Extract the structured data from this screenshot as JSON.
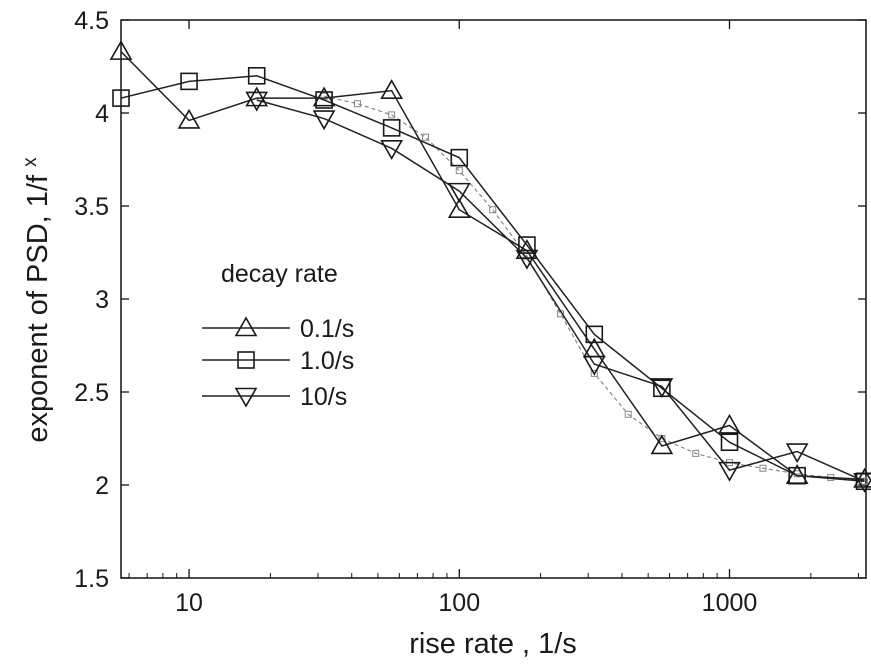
{
  "chart_data": {
    "type": "line",
    "xlabel": "rise rate , 1/s",
    "ylabel": "exponent of PSD, 1/f",
    "ylabel_superscript": "x",
    "xscale": "log",
    "xlim": [
      5.6,
      3200
    ],
    "ylim": [
      1.5,
      4.5
    ],
    "xticks": [
      10,
      100,
      1000
    ],
    "xtick_labels": [
      "10",
      "100",
      "1000"
    ],
    "yticks": [
      1.5,
      2,
      2.5,
      3,
      3.5,
      4,
      4.5
    ],
    "ytick_labels": [
      "1.5",
      "2",
      "2.5",
      "3",
      "3.5",
      "4",
      "4.5"
    ],
    "grid": false,
    "legend": {
      "title": "decay rate",
      "position": "center-left",
      "entries": [
        "0.1/s",
        "1.0/s",
        "10/s"
      ]
    },
    "series": [
      {
        "name": "0.1/s",
        "marker": "triangle-up",
        "x": [
          5.6,
          10,
          17.8,
          31.6,
          56.2,
          100,
          178,
          316,
          562,
          1000,
          1780,
          3160
        ],
        "y": [
          4.33,
          3.96,
          4.08,
          4.08,
          4.12,
          3.48,
          3.26,
          2.73,
          2.21,
          2.32,
          2.05,
          2.03
        ]
      },
      {
        "name": "1.0/s",
        "marker": "square",
        "x": [
          5.6,
          10,
          17.8,
          31.6,
          56.2,
          100,
          178,
          316,
          562,
          1000,
          1780,
          3160
        ],
        "y": [
          4.08,
          4.17,
          4.2,
          4.07,
          3.92,
          3.76,
          3.29,
          2.81,
          2.52,
          2.23,
          2.05,
          2.02
        ]
      },
      {
        "name": "10/s",
        "marker": "triangle-down",
        "x": [
          17.8,
          31.6,
          56.2,
          100,
          178,
          316,
          562,
          1000,
          1780,
          3160
        ],
        "y": [
          4.07,
          3.97,
          3.81,
          3.58,
          3.22,
          2.65,
          2.53,
          2.08,
          2.18,
          2.02
        ]
      },
      {
        "marker": "small-square-dashed",
        "color": "#888888",
        "x": [
          31.6,
          42,
          56.2,
          75,
          100,
          133,
          178,
          237,
          316,
          422,
          562,
          750,
          1000,
          1330,
          1780,
          2370,
          3160
        ],
        "y": [
          4.09,
          4.05,
          3.99,
          3.87,
          3.69,
          3.48,
          3.23,
          2.92,
          2.6,
          2.38,
          2.25,
          2.17,
          2.12,
          2.09,
          2.06,
          2.04,
          2.02
        ]
      }
    ]
  }
}
